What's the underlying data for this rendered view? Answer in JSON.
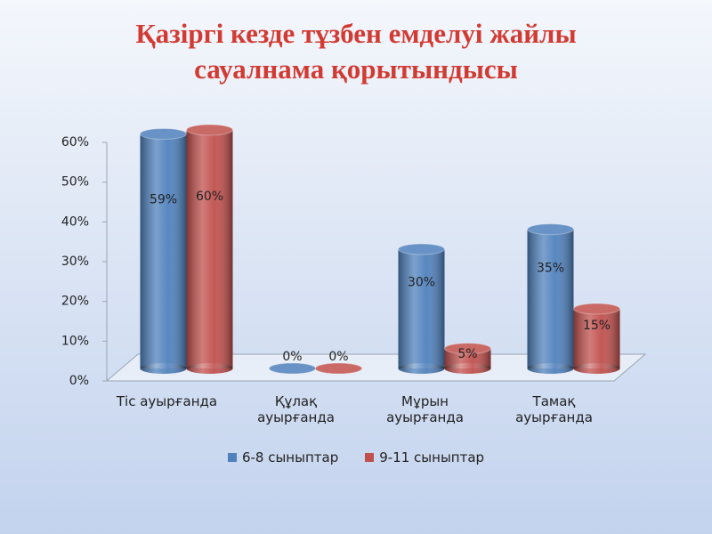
{
  "chart_data": {
    "type": "bar",
    "title": "Қазіргі кезде тұзбен емделуі жайлы\nсауалнама қорытындысы",
    "categories": [
      "Тіс ауырғанда",
      "Құлақ\nауырғанда",
      "Мұрын\nауырғанда",
      "Тамақ\nауырғанда"
    ],
    "series": [
      {
        "name": "6-8 сыныптар",
        "color": "#4f81bd",
        "values": [
          59,
          0,
          30,
          35
        ],
        "value_labels": [
          "59%",
          "0%",
          "30%",
          "35%"
        ]
      },
      {
        "name": "9-11 сыныптар",
        "color": "#c0504d",
        "values": [
          60,
          0,
          5,
          15
        ],
        "value_labels": [
          "60%",
          "0%",
          "5%",
          "15%"
        ]
      }
    ],
    "ylim": [
      0,
      60
    ],
    "yticks": [
      {
        "value": 0,
        "label": "0%"
      },
      {
        "value": 10,
        "label": "10%"
      },
      {
        "value": 20,
        "label": "20%"
      },
      {
        "value": 30,
        "label": "30%"
      },
      {
        "value": 40,
        "label": "40%"
      },
      {
        "value": 50,
        "label": "50%"
      },
      {
        "value": 60,
        "label": "60%"
      }
    ]
  }
}
